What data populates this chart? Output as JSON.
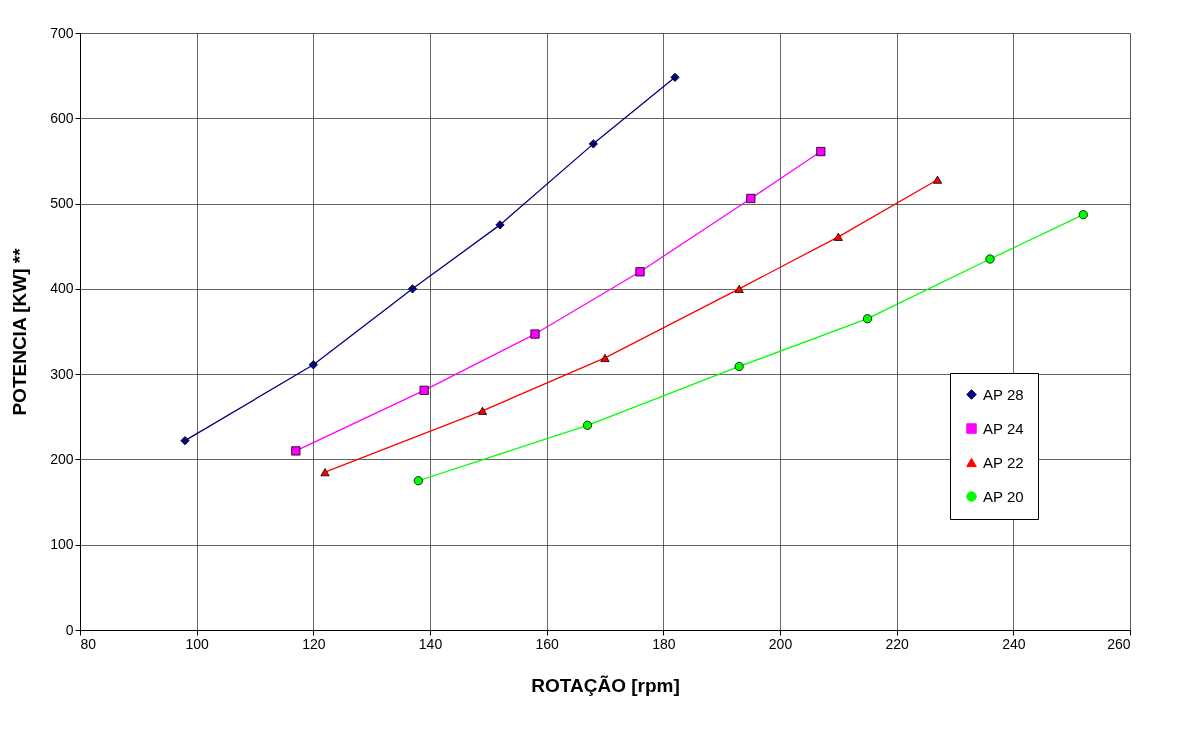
{
  "chart_data": {
    "type": "line",
    "xlabel": "ROTAÇÃO  [rpm]",
    "ylabel": "POTENCIA [KW] **",
    "xlim": [
      80,
      260
    ],
    "xticks": [
      80,
      100,
      120,
      140,
      160,
      180,
      200,
      220,
      240,
      260
    ],
    "ylim": [
      0,
      700
    ],
    "yticks": [
      0,
      100,
      200,
      300,
      400,
      500,
      600,
      700
    ],
    "grid": true,
    "legend": "right",
    "series": [
      {
        "name": "AP 28",
        "color": "#000080",
        "marker": "diamond",
        "x": [
          98,
          120,
          137,
          152,
          168,
          182
        ],
        "values": [
          222,
          311,
          400,
          475,
          570,
          648
        ]
      },
      {
        "name": "AP 24",
        "color": "#ff00ff",
        "marker": "square",
        "x": [
          117,
          139,
          158,
          176,
          195,
          207
        ],
        "values": [
          210,
          281,
          347,
          420,
          506,
          561
        ]
      },
      {
        "name": "AP 22",
        "color": "#ff0000",
        "marker": "triangle",
        "x": [
          122,
          149,
          170,
          193,
          210,
          227
        ],
        "values": [
          185,
          257,
          319,
          400,
          461,
          528
        ]
      },
      {
        "name": "AP 20",
        "color": "#00ff00",
        "marker": "circle",
        "x": [
          138,
          167,
          193,
          215,
          236,
          252
        ],
        "values": [
          175,
          240,
          309,
          365,
          435,
          487
        ]
      }
    ]
  }
}
